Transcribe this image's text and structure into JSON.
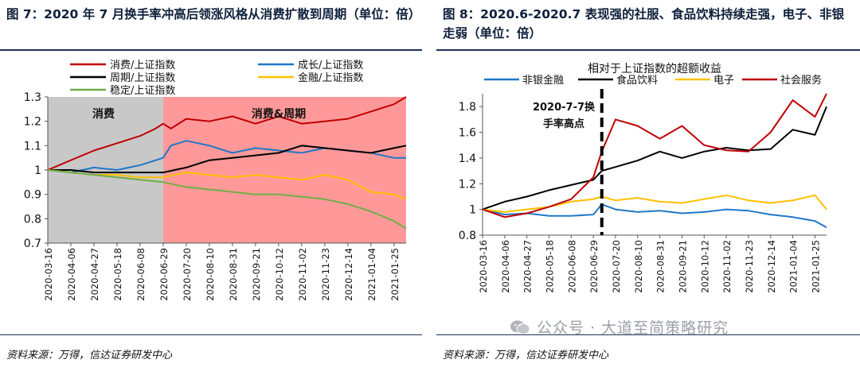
{
  "left": {
    "title": "图 7：2020 年 7 月换手率冲高后领涨风格从消费扩散到周期（单位：倍）",
    "source": "资料来源：万得，信达证券研发中心",
    "region_labels": [
      "消费",
      "消费&周期"
    ],
    "chart_data": {
      "type": "line",
      "title": "",
      "ylabel": "",
      "xlabel": "",
      "ylim": [
        0.7,
        1.3
      ],
      "yticks": [
        0.7,
        0.8,
        0.9,
        1,
        1.1,
        1.2,
        1.3
      ],
      "date_start": "2020-03-16",
      "date_end": "2021-02-05",
      "x_tick_labels": [
        "2020-03-16",
        "2020-04-06",
        "2020-04-27",
        "2020-05-18",
        "2020-06-08",
        "2020-06-29",
        "2020-07-20",
        "2020-08-10",
        "2020-08-31",
        "2020-09-21",
        "2020-10-12",
        "2020-11-02",
        "2020-11-23",
        "2020-12-14",
        "2021-01-04",
        "2021-01-25"
      ],
      "shaded_regions": [
        {
          "label": "消费",
          "start": "2020-03-16",
          "end": "2020-06-29",
          "color": "#c8c8c8"
        },
        {
          "label": "消费&周期",
          "start": "2020-06-29",
          "end": "2021-02-05",
          "color": "#ff9999"
        }
      ],
      "series": [
        {
          "name": "消费/上证指数",
          "color": "#c00000",
          "x": [
            "2020-03-16",
            "2020-04-06",
            "2020-04-27",
            "2020-05-18",
            "2020-06-08",
            "2020-06-22",
            "2020-06-29",
            "2020-07-06",
            "2020-07-20",
            "2020-08-10",
            "2020-08-31",
            "2020-09-21",
            "2020-10-12",
            "2020-11-02",
            "2020-11-23",
            "2020-12-14",
            "2021-01-04",
            "2021-01-25",
            "2021-02-05"
          ],
          "y": [
            1.0,
            1.04,
            1.08,
            1.11,
            1.14,
            1.17,
            1.19,
            1.17,
            1.21,
            1.2,
            1.22,
            1.19,
            1.22,
            1.19,
            1.2,
            1.21,
            1.24,
            1.27,
            1.3
          ]
        },
        {
          "name": "成长/上证指数",
          "color": "#1f78c8",
          "x": [
            "2020-03-16",
            "2020-04-06",
            "2020-04-27",
            "2020-05-18",
            "2020-06-08",
            "2020-06-29",
            "2020-07-06",
            "2020-07-20",
            "2020-08-10",
            "2020-08-31",
            "2020-09-21",
            "2020-10-12",
            "2020-11-02",
            "2020-11-23",
            "2020-12-14",
            "2021-01-04",
            "2021-01-25",
            "2021-02-05"
          ],
          "y": [
            1.0,
            0.99,
            1.01,
            1.0,
            1.02,
            1.05,
            1.1,
            1.12,
            1.1,
            1.07,
            1.09,
            1.08,
            1.07,
            1.09,
            1.08,
            1.07,
            1.05,
            1.05
          ]
        },
        {
          "name": "周期/上证指数",
          "color": "#000000",
          "x": [
            "2020-03-16",
            "2020-04-06",
            "2020-04-27",
            "2020-05-18",
            "2020-06-08",
            "2020-06-29",
            "2020-07-20",
            "2020-08-10",
            "2020-08-31",
            "2020-09-21",
            "2020-10-12",
            "2020-11-02",
            "2020-11-23",
            "2020-12-14",
            "2021-01-04",
            "2021-01-25",
            "2021-02-05"
          ],
          "y": [
            1.0,
            1.0,
            0.99,
            0.99,
            0.99,
            0.99,
            1.01,
            1.04,
            1.05,
            1.06,
            1.07,
            1.1,
            1.09,
            1.08,
            1.07,
            1.09,
            1.1
          ]
        },
        {
          "name": "金融/上证指数",
          "color": "#ffc000",
          "x": [
            "2020-03-16",
            "2020-04-06",
            "2020-04-27",
            "2020-05-18",
            "2020-06-08",
            "2020-06-29",
            "2020-07-20",
            "2020-08-10",
            "2020-08-31",
            "2020-09-21",
            "2020-10-12",
            "2020-11-02",
            "2020-11-23",
            "2020-12-14",
            "2021-01-04",
            "2021-01-25",
            "2021-02-05"
          ],
          "y": [
            1.0,
            0.99,
            0.98,
            0.98,
            0.97,
            0.97,
            0.99,
            0.98,
            0.97,
            0.98,
            0.97,
            0.96,
            0.98,
            0.96,
            0.91,
            0.9,
            0.88
          ]
        },
        {
          "name": "稳定/上证指数",
          "color": "#70ad47",
          "x": [
            "2020-03-16",
            "2020-04-06",
            "2020-04-27",
            "2020-05-18",
            "2020-06-08",
            "2020-06-29",
            "2020-07-20",
            "2020-08-10",
            "2020-08-31",
            "2020-09-21",
            "2020-10-12",
            "2020-11-02",
            "2020-11-23",
            "2020-12-14",
            "2021-01-04",
            "2021-01-25",
            "2021-02-05"
          ],
          "y": [
            1.0,
            0.99,
            0.98,
            0.97,
            0.96,
            0.95,
            0.93,
            0.92,
            0.91,
            0.9,
            0.9,
            0.89,
            0.88,
            0.86,
            0.83,
            0.79,
            0.76
          ]
        }
      ]
    }
  },
  "right": {
    "title": "图 8：2020.6-2020.7 表现强的社服、食品饮料持续走强，电子、非银走弱（单位：倍）",
    "source": "资料来源：万得，信达证券研发中心",
    "annotation": [
      "2020-7-7换",
      "手率高点"
    ],
    "chart_data": {
      "type": "line",
      "title": "相对于上证指数的超额收益",
      "ylabel": "",
      "xlabel": "",
      "ylim": [
        0.8,
        1.9
      ],
      "yticks": [
        0.8,
        1,
        1.2,
        1.4,
        1.6,
        1.8
      ],
      "date_start": "2020-03-16",
      "date_end": "2021-02-05",
      "event_line": "2020-07-07",
      "x_tick_labels": [
        "2020-03-16",
        "2020-04-06",
        "2020-04-27",
        "2020-05-18",
        "2020-06-08",
        "2020-06-29",
        "2020-07-20",
        "2020-08-10",
        "2020-08-31",
        "2020-09-21",
        "2020-10-12",
        "2020-11-02",
        "2020-11-23",
        "2020-12-14",
        "2021-01-04",
        "2021-01-25"
      ],
      "series": [
        {
          "name": "非银金融",
          "color": "#1f78c8",
          "x": [
            "2020-03-16",
            "2020-04-06",
            "2020-04-27",
            "2020-05-18",
            "2020-06-08",
            "2020-06-29",
            "2020-07-07",
            "2020-07-20",
            "2020-08-10",
            "2020-08-31",
            "2020-09-21",
            "2020-10-12",
            "2020-11-02",
            "2020-11-23",
            "2020-12-14",
            "2021-01-04",
            "2021-01-25",
            "2021-02-05"
          ],
          "y": [
            1.0,
            0.96,
            0.97,
            0.95,
            0.95,
            0.96,
            1.04,
            1.0,
            0.98,
            0.99,
            0.97,
            0.98,
            1.0,
            0.99,
            0.96,
            0.94,
            0.91,
            0.86
          ]
        },
        {
          "name": "食品饮料",
          "color": "#000000",
          "x": [
            "2020-03-16",
            "2020-04-06",
            "2020-04-27",
            "2020-05-18",
            "2020-06-08",
            "2020-06-29",
            "2020-07-07",
            "2020-07-20",
            "2020-08-10",
            "2020-08-31",
            "2020-09-21",
            "2020-10-12",
            "2020-11-02",
            "2020-11-23",
            "2020-12-14",
            "2021-01-04",
            "2021-01-25",
            "2021-02-05"
          ],
          "y": [
            1.0,
            1.06,
            1.1,
            1.15,
            1.19,
            1.23,
            1.3,
            1.33,
            1.38,
            1.45,
            1.4,
            1.45,
            1.48,
            1.46,
            1.47,
            1.62,
            1.58,
            1.8
          ]
        },
        {
          "name": "电子",
          "color": "#ffc000",
          "x": [
            "2020-03-16",
            "2020-04-06",
            "2020-04-27",
            "2020-05-18",
            "2020-06-08",
            "2020-06-29",
            "2020-07-07",
            "2020-07-20",
            "2020-08-10",
            "2020-08-31",
            "2020-09-21",
            "2020-10-12",
            "2020-11-02",
            "2020-11-23",
            "2020-12-14",
            "2021-01-04",
            "2021-01-25",
            "2021-02-05"
          ],
          "y": [
            1.0,
            0.98,
            1.0,
            1.02,
            1.06,
            1.08,
            1.1,
            1.07,
            1.09,
            1.06,
            1.05,
            1.08,
            1.11,
            1.07,
            1.05,
            1.07,
            1.11,
            1.0
          ]
        },
        {
          "name": "社会服务",
          "color": "#c00000",
          "x": [
            "2020-03-16",
            "2020-04-06",
            "2020-04-27",
            "2020-05-18",
            "2020-06-08",
            "2020-06-29",
            "2020-07-07",
            "2020-07-20",
            "2020-08-10",
            "2020-08-31",
            "2020-09-21",
            "2020-10-12",
            "2020-11-02",
            "2020-11-23",
            "2020-12-14",
            "2021-01-04",
            "2021-01-25",
            "2021-02-05"
          ],
          "y": [
            1.0,
            0.94,
            0.97,
            1.02,
            1.08,
            1.25,
            1.45,
            1.7,
            1.65,
            1.55,
            1.65,
            1.5,
            1.46,
            1.45,
            1.6,
            1.85,
            1.72,
            1.9
          ]
        }
      ]
    }
  },
  "watermark": "公众号 · 大道至简策略研究"
}
